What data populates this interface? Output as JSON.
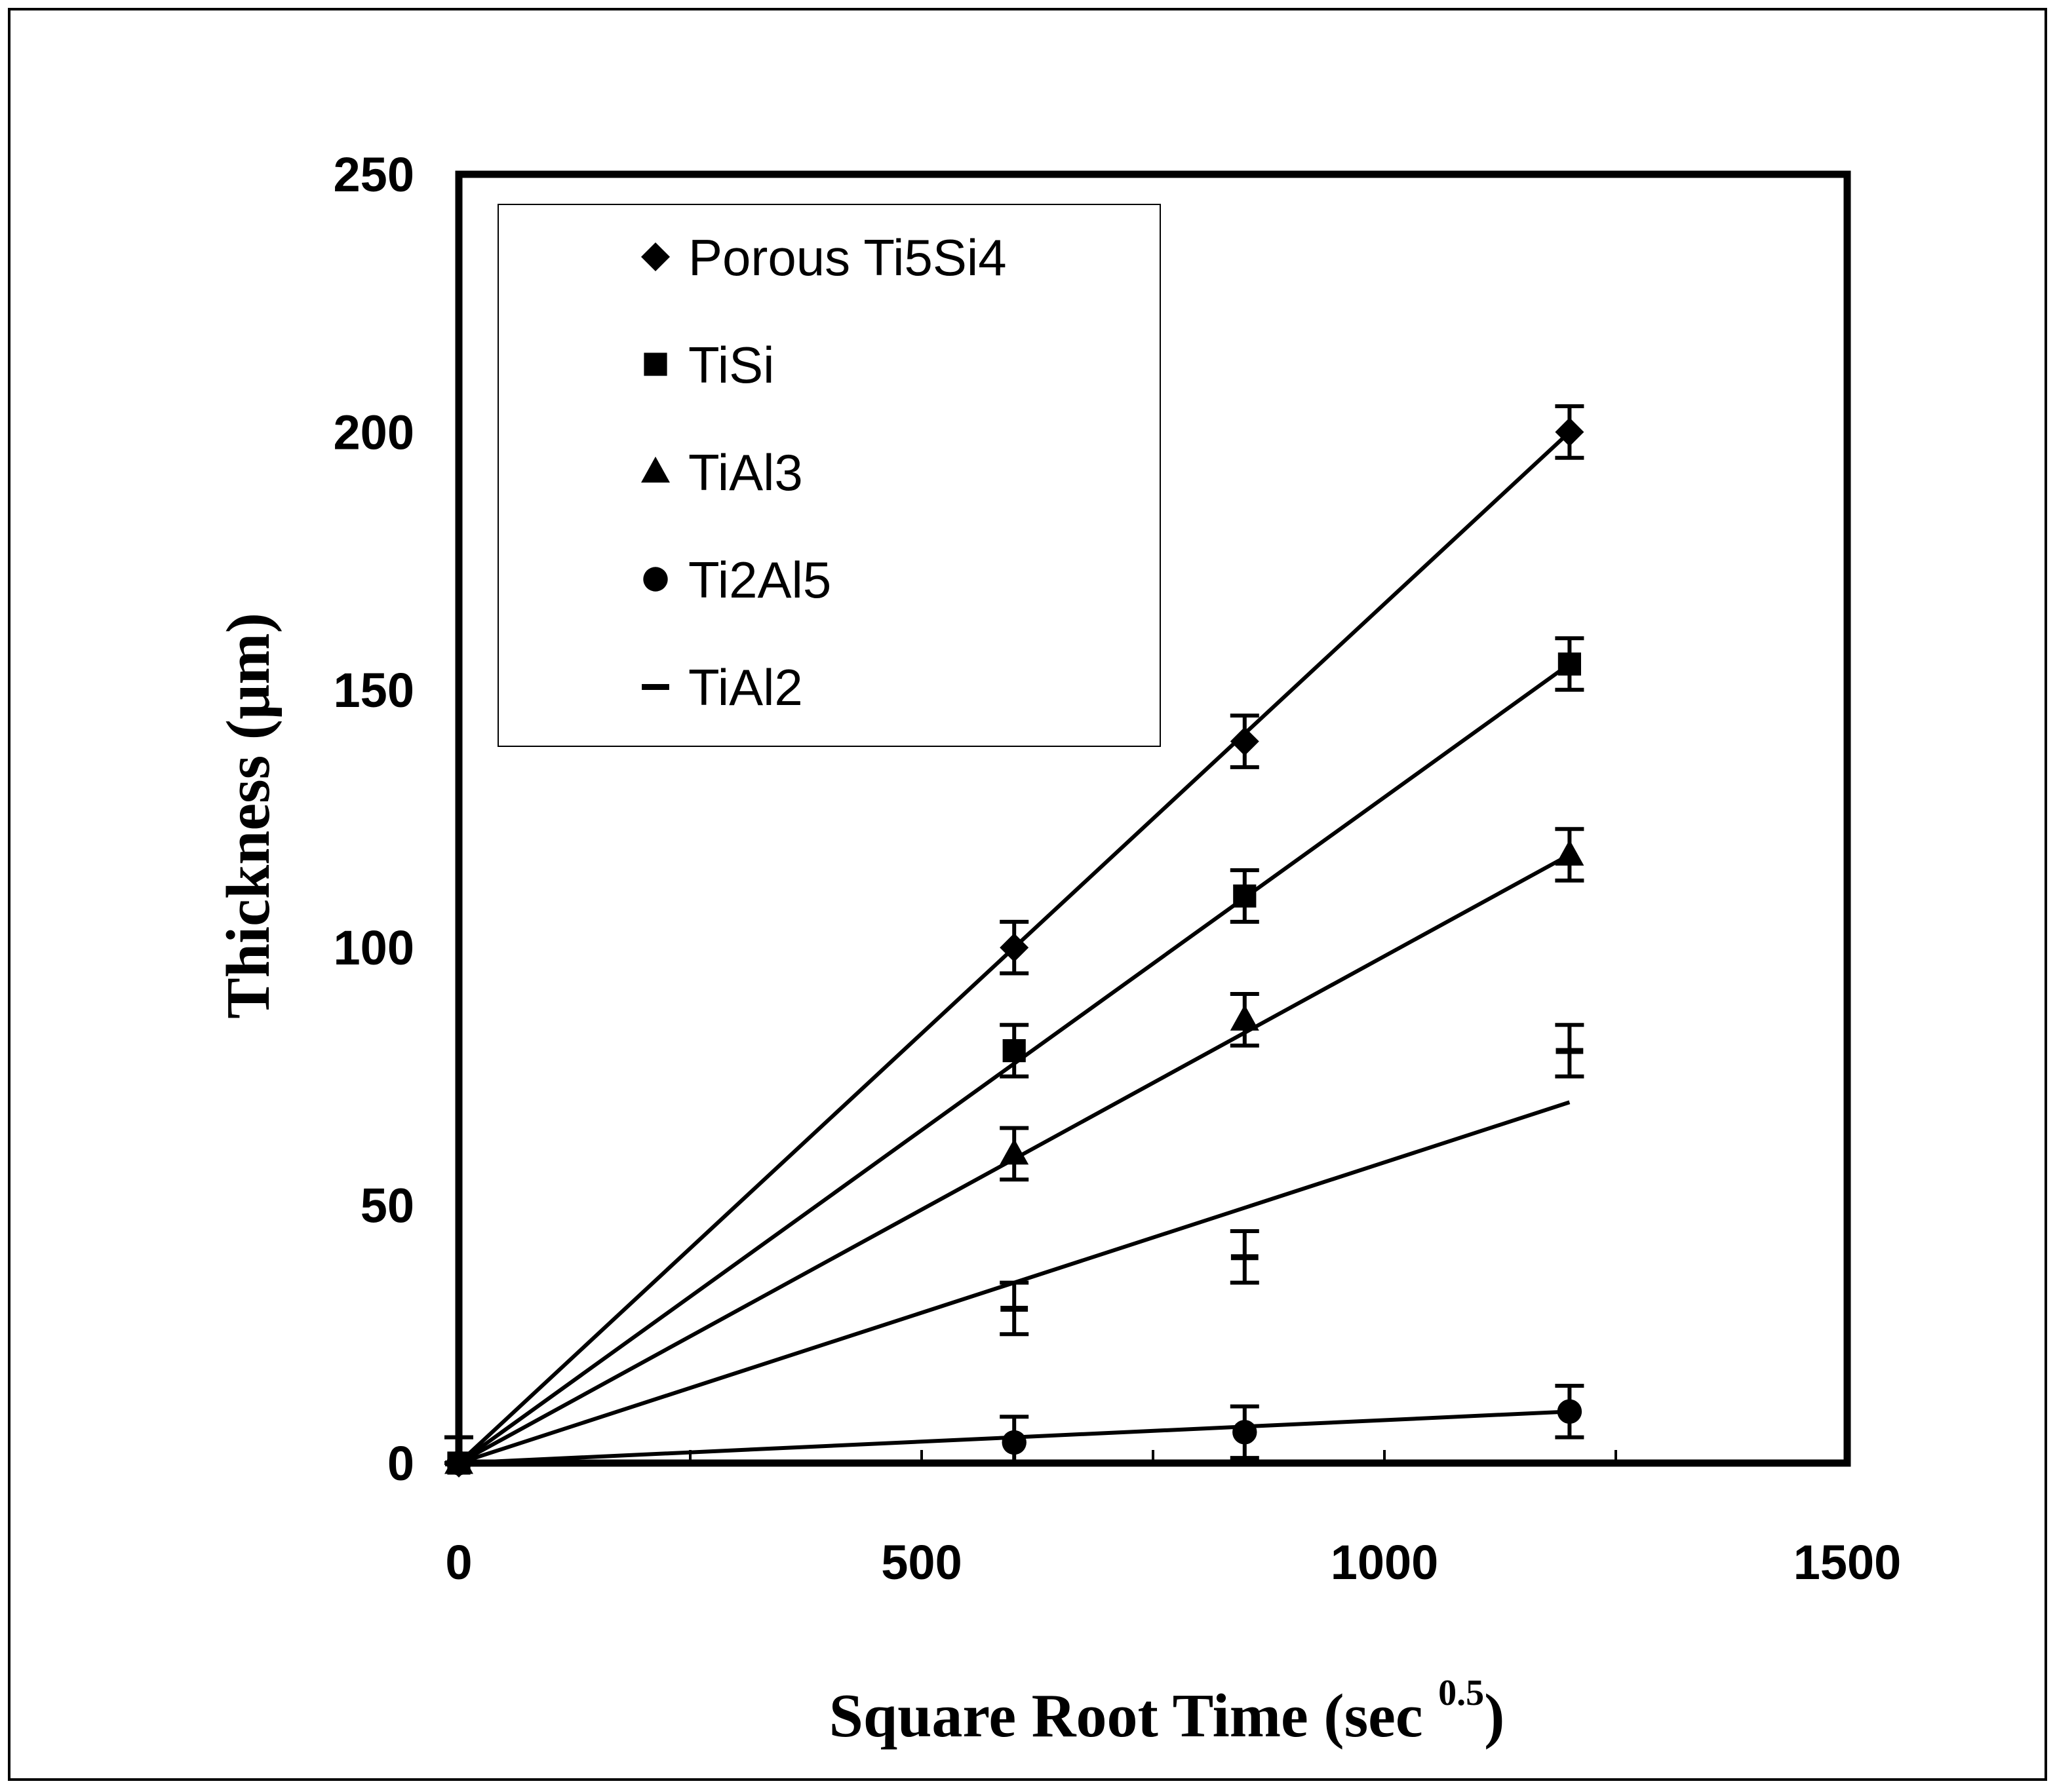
{
  "chart_data": {
    "type": "scatter",
    "xlabel": "Square Root Time (sec",
    "xlabel_superscript": "0.5",
    "xlabel_close": ")",
    "ylabel": "Thickness (μm)",
    "xlim": [
      0,
      1500
    ],
    "ylim": [
      0,
      250
    ],
    "x_ticks": [
      "0",
      "500",
      "1000",
      "1500"
    ],
    "y_ticks": [
      "0",
      "50",
      "100",
      "150",
      "200",
      "250"
    ],
    "grid": false,
    "legend_position": "top-left",
    "series": [
      {
        "name": "Porous Ti5Si4",
        "marker": "diamond",
        "points": [
          {
            "x": 0,
            "y": 0,
            "err": 0
          },
          {
            "x": 600,
            "y": 100,
            "err": 5
          },
          {
            "x": 849,
            "y": 140,
            "err": 5
          },
          {
            "x": 1200,
            "y": 200,
            "err": 5
          }
        ],
        "fit_end": {
          "x": 1200,
          "y": 200
        }
      },
      {
        "name": "TiSi",
        "marker": "square",
        "points": [
          {
            "x": 0,
            "y": 0,
            "err": 0
          },
          {
            "x": 600,
            "y": 80,
            "err": 5
          },
          {
            "x": 849,
            "y": 110,
            "err": 5
          },
          {
            "x": 1200,
            "y": 155,
            "err": 5
          }
        ],
        "fit_end": {
          "x": 1200,
          "y": 155
        }
      },
      {
        "name": "TiAl3",
        "marker": "triangle",
        "points": [
          {
            "x": 0,
            "y": 0,
            "err": 0
          },
          {
            "x": 600,
            "y": 60,
            "err": 5
          },
          {
            "x": 849,
            "y": 86,
            "err": 5
          },
          {
            "x": 1200,
            "y": 118,
            "err": 5
          }
        ],
        "fit_end": {
          "x": 1200,
          "y": 118
        }
      },
      {
        "name": "Ti2Al5",
        "marker": "circle",
        "points": [
          {
            "x": 0,
            "y": 0,
            "err": 5
          },
          {
            "x": 600,
            "y": 4,
            "err": 5
          },
          {
            "x": 849,
            "y": 6,
            "err": 5
          },
          {
            "x": 1200,
            "y": 10,
            "err": 5
          }
        ],
        "fit_end": {
          "x": 1200,
          "y": 10
        }
      },
      {
        "name": "TiAl2",
        "marker": "dash",
        "points": [
          {
            "x": 0,
            "y": 0,
            "err": 5
          },
          {
            "x": 600,
            "y": 30,
            "err": 5
          },
          {
            "x": 849,
            "y": 40,
            "err": 5
          },
          {
            "x": 1200,
            "y": 80,
            "err": 5
          }
        ],
        "fit_end": {
          "x": 1200,
          "y": 70
        }
      }
    ]
  }
}
